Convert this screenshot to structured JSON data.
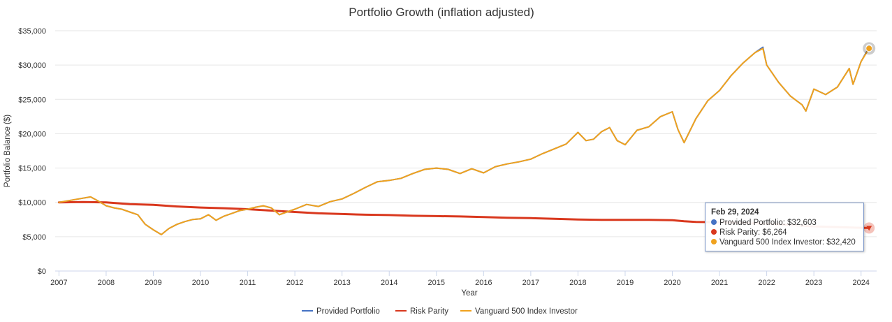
{
  "chart_data": {
    "type": "line",
    "title": "Portfolio Growth (inflation adjusted)",
    "xlabel": "Year",
    "ylabel": "Portfolio Balance ($)",
    "xlim": [
      2006.92,
      2024.33
    ],
    "ylim": [
      0,
      35000
    ],
    "y_ticks": [
      0,
      5000,
      10000,
      15000,
      20000,
      25000,
      30000,
      35000
    ],
    "y_tick_labels": [
      "$0",
      "$5,000",
      "$10,000",
      "$15,000",
      "$20,000",
      "$25,000",
      "$30,000",
      "$35,000"
    ],
    "x_ticks": [
      2007,
      2008,
      2009,
      2010,
      2011,
      2012,
      2013,
      2014,
      2015,
      2016,
      2017,
      2018,
      2019,
      2020,
      2021,
      2022,
      2023,
      2024
    ],
    "x_tick_labels": [
      "2007",
      "2008",
      "2009",
      "2010",
      "2011",
      "2012",
      "2013",
      "2014",
      "2015",
      "2016",
      "2017",
      "2018",
      "2019",
      "2020",
      "2021",
      "2022",
      "2023",
      "2024"
    ],
    "grid": true,
    "legend_position": "bottom",
    "series": [
      {
        "name": "Provided Portfolio",
        "color": "#4572c4",
        "x": [
          2007.0,
          2007.17,
          2007.33,
          2007.5,
          2007.67,
          2007.83,
          2008.0,
          2008.17,
          2008.33,
          2008.5,
          2008.67,
          2008.83,
          2009.0,
          2009.17,
          2009.33,
          2009.5,
          2009.67,
          2009.83,
          2010.0,
          2010.17,
          2010.33,
          2010.5,
          2010.67,
          2010.83,
          2011.0,
          2011.17,
          2011.33,
          2011.5,
          2011.67,
          2011.83,
          2012.0,
          2012.25,
          2012.5,
          2012.75,
          2013.0,
          2013.25,
          2013.5,
          2013.75,
          2014.0,
          2014.25,
          2014.5,
          2014.75,
          2015.0,
          2015.25,
          2015.5,
          2015.75,
          2016.0,
          2016.25,
          2016.5,
          2016.75,
          2017.0,
          2017.25,
          2017.5,
          2017.75,
          2018.0,
          2018.17,
          2018.33,
          2018.5,
          2018.67,
          2018.83,
          2019.0,
          2019.25,
          2019.5,
          2019.75,
          2020.0,
          2020.12,
          2020.25,
          2020.5,
          2020.75,
          2021.0,
          2021.25,
          2021.5,
          2021.75,
          2021.92,
          2022.0,
          2022.25,
          2022.5,
          2022.75,
          2022.83,
          2023.0,
          2023.25,
          2023.5,
          2023.75,
          2023.83,
          2024.0,
          2024.17
        ],
        "values": [
          10000,
          10200,
          10400,
          10600,
          10800,
          10200,
          9500,
          9200,
          9000,
          8600,
          8200,
          6800,
          6000,
          5300,
          6200,
          6800,
          7200,
          7500,
          7600,
          8200,
          7400,
          8000,
          8400,
          8800,
          9000,
          9300,
          9500,
          9200,
          8200,
          8600,
          9000,
          9700,
          9400,
          10100,
          10500,
          11300,
          12200,
          13000,
          13200,
          13500,
          14200,
          14800,
          15000,
          14800,
          14200,
          14900,
          14300,
          15200,
          15600,
          15900,
          16300,
          17100,
          17800,
          18500,
          20200,
          19000,
          19200,
          20300,
          20900,
          19000,
          18400,
          20500,
          21000,
          22500,
          23200,
          20600,
          18700,
          22200,
          24800,
          26300,
          28500,
          30300,
          31800,
          32603,
          30000,
          27500,
          25500,
          24200,
          23300,
          26500,
          25700,
          26800,
          29500,
          27200,
          30500,
          32603
        ]
      },
      {
        "name": "Risk Parity",
        "color": "#d9381e",
        "x": [
          2007.0,
          2007.5,
          2008.0,
          2008.5,
          2009.0,
          2009.5,
          2010.0,
          2010.5,
          2011.0,
          2011.5,
          2012.0,
          2012.5,
          2013.0,
          2013.5,
          2014.0,
          2014.5,
          2015.0,
          2015.5,
          2016.0,
          2016.5,
          2017.0,
          2017.5,
          2018.0,
          2018.5,
          2019.0,
          2019.5,
          2020.0,
          2020.25,
          2020.5,
          2021.0,
          2021.5,
          2022.0,
          2022.5,
          2023.0,
          2023.5,
          2024.0,
          2024.17
        ],
        "values": [
          10000,
          10050,
          10000,
          9750,
          9650,
          9400,
          9250,
          9150,
          9000,
          8800,
          8600,
          8400,
          8300,
          8200,
          8150,
          8050,
          8000,
          7950,
          7850,
          7750,
          7700,
          7600,
          7500,
          7450,
          7450,
          7450,
          7400,
          7250,
          7150,
          7100,
          7000,
          6900,
          6700,
          6500,
          6400,
          6300,
          6264
        ]
      },
      {
        "name": "Vanguard 500 Index Investor",
        "color": "#f0a21e",
        "x": [
          2007.0,
          2007.17,
          2007.33,
          2007.5,
          2007.67,
          2007.83,
          2008.0,
          2008.17,
          2008.33,
          2008.5,
          2008.67,
          2008.83,
          2009.0,
          2009.17,
          2009.33,
          2009.5,
          2009.67,
          2009.83,
          2010.0,
          2010.17,
          2010.33,
          2010.5,
          2010.67,
          2010.83,
          2011.0,
          2011.17,
          2011.33,
          2011.5,
          2011.67,
          2011.83,
          2012.0,
          2012.25,
          2012.5,
          2012.75,
          2013.0,
          2013.25,
          2013.5,
          2013.75,
          2014.0,
          2014.25,
          2014.5,
          2014.75,
          2015.0,
          2015.25,
          2015.5,
          2015.75,
          2016.0,
          2016.25,
          2016.5,
          2016.75,
          2017.0,
          2017.25,
          2017.5,
          2017.75,
          2018.0,
          2018.17,
          2018.33,
          2018.5,
          2018.67,
          2018.83,
          2019.0,
          2019.25,
          2019.5,
          2019.75,
          2020.0,
          2020.12,
          2020.25,
          2020.5,
          2020.75,
          2021.0,
          2021.25,
          2021.5,
          2021.75,
          2021.92,
          2022.0,
          2022.25,
          2022.5,
          2022.75,
          2022.83,
          2023.0,
          2023.25,
          2023.5,
          2023.75,
          2023.83,
          2024.0,
          2024.17
        ],
        "values": [
          10000,
          10200,
          10400,
          10600,
          10800,
          10200,
          9500,
          9200,
          9000,
          8600,
          8200,
          6800,
          6000,
          5300,
          6200,
          6800,
          7200,
          7500,
          7600,
          8200,
          7400,
          8000,
          8400,
          8800,
          9000,
          9300,
          9500,
          9200,
          8200,
          8600,
          9000,
          9700,
          9400,
          10100,
          10500,
          11300,
          12200,
          13000,
          13200,
          13500,
          14200,
          14800,
          15000,
          14800,
          14200,
          14900,
          14300,
          15200,
          15600,
          15900,
          16300,
          17100,
          17800,
          18500,
          20200,
          19000,
          19200,
          20300,
          20900,
          19000,
          18400,
          20500,
          21000,
          22500,
          23200,
          20600,
          18700,
          22200,
          24800,
          26300,
          28500,
          30300,
          31800,
          32420,
          30000,
          27500,
          25500,
          24200,
          23300,
          26500,
          25700,
          26800,
          29500,
          27200,
          30500,
          32420
        ]
      }
    ],
    "tooltip": {
      "date": "Feb 29, 2024",
      "x": 2024.17,
      "rows": [
        {
          "label": "Provided Portfolio: $32,603",
          "color": "#4572c4"
        },
        {
          "label": "Risk Parity: $6,264",
          "color": "#d9381e"
        },
        {
          "label": "Vanguard 500 Index Investor: $32,420",
          "color": "#f0a21e"
        }
      ]
    }
  }
}
